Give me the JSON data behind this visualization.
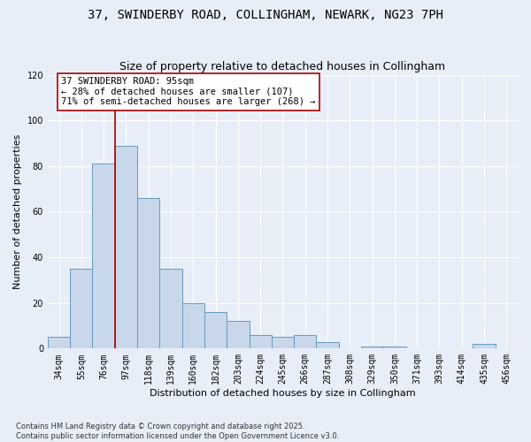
{
  "title_line1": "37, SWINDERBY ROAD, COLLINGHAM, NEWARK, NG23 7PH",
  "title_line2": "Size of property relative to detached houses in Collingham",
  "xlabel": "Distribution of detached houses by size in Collingham",
  "ylabel": "Number of detached properties",
  "categories": [
    "34sqm",
    "55sqm",
    "76sqm",
    "97sqm",
    "118sqm",
    "139sqm",
    "160sqm",
    "182sqm",
    "203sqm",
    "224sqm",
    "245sqm",
    "266sqm",
    "287sqm",
    "308sqm",
    "329sqm",
    "350sqm",
    "371sqm",
    "393sqm",
    "414sqm",
    "435sqm",
    "456sqm"
  ],
  "values": [
    5,
    35,
    81,
    89,
    66,
    35,
    20,
    16,
    12,
    6,
    5,
    6,
    3,
    0,
    1,
    1,
    0,
    0,
    0,
    2,
    0
  ],
  "bar_color": "#c8d8ea",
  "bar_edge_color": "#6699bb",
  "bar_edge_width": 0.7,
  "vline_index": 2.5,
  "vline_color": "#aa0000",
  "annotation_text": "37 SWINDERBY ROAD: 95sqm\n← 28% of detached houses are smaller (107)\n71% of semi-detached houses are larger (268) →",
  "annotation_box_color": "#ffffff",
  "annotation_box_edge_color": "#aa0000",
  "ylim": [
    0,
    120
  ],
  "yticks": [
    0,
    20,
    40,
    60,
    80,
    100,
    120
  ],
  "background_color": "#e8eef8",
  "plot_bg_color": "#e8eef8",
  "footer_text": "Contains HM Land Registry data © Crown copyright and database right 2025.\nContains public sector information licensed under the Open Government Licence v3.0.",
  "title_fontsize": 10,
  "subtitle_fontsize": 9,
  "axis_label_fontsize": 8,
  "tick_fontsize": 7,
  "annotation_fontsize": 7.5,
  "footer_fontsize": 6
}
